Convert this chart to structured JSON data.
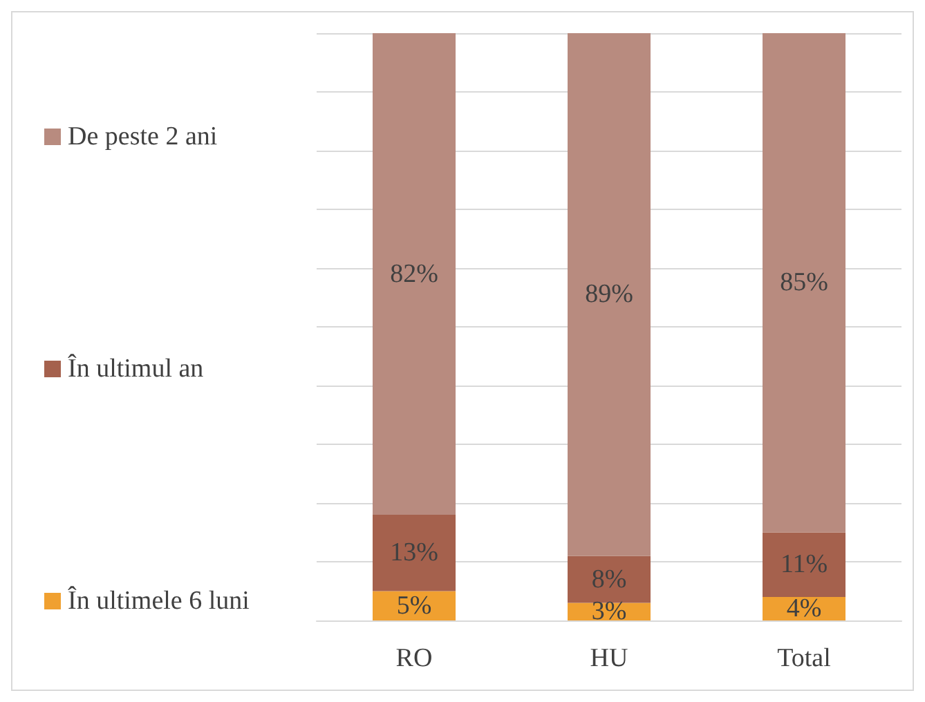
{
  "chart_data": {
    "type": "bar",
    "stacked": true,
    "categories": [
      "RO",
      "HU",
      "Total"
    ],
    "series": [
      {
        "name": "În ultimele 6 luni",
        "color": "#f0a030",
        "values": [
          5,
          3,
          4
        ],
        "value_labels": [
          "5%",
          "3%",
          "4%"
        ]
      },
      {
        "name": "În ultimul an",
        "color": "#a5614d",
        "values": [
          13,
          8,
          11
        ],
        "value_labels": [
          "13%",
          "8%",
          "11%"
        ]
      },
      {
        "name": "De peste 2 ani",
        "color": "#b88b7f",
        "values": [
          82,
          89,
          85
        ],
        "value_labels": [
          "82%",
          "89%",
          "85%"
        ]
      }
    ],
    "ylim": [
      0,
      100
    ],
    "yticks": [
      {
        "value": 0,
        "label": null
      },
      {
        "value": 10,
        "label": null
      },
      {
        "value": 20,
        "label": null
      },
      {
        "value": 30,
        "label": null
      },
      {
        "value": 40,
        "label": null
      },
      {
        "value": 50,
        "label": null
      },
      {
        "value": 60,
        "label": null
      },
      {
        "value": 70,
        "label": null
      },
      {
        "value": 80,
        "label": null
      },
      {
        "value": 90,
        "label": null
      },
      {
        "value": 100,
        "label": null
      }
    ],
    "grid": "y",
    "legend": "left",
    "tick_labels": "x"
  }
}
